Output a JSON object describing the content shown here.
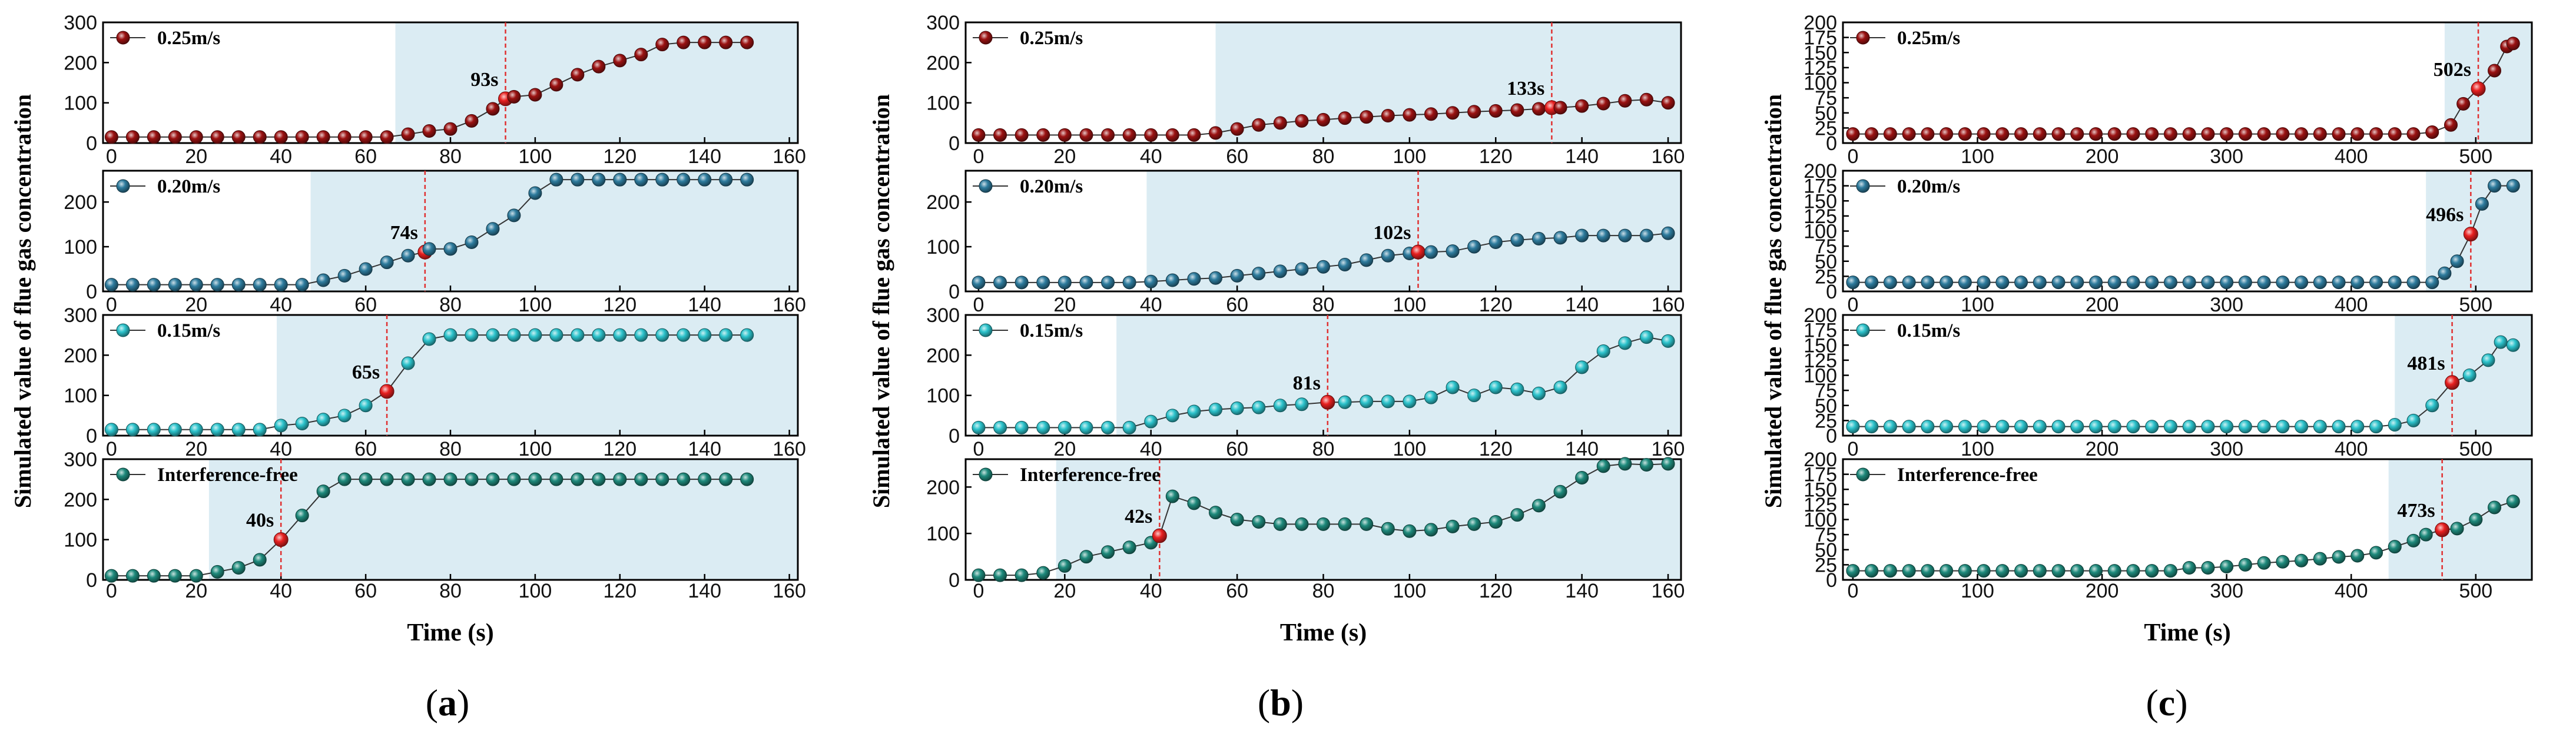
{
  "chart_data": [
    {
      "type": "line",
      "panel_label": "a",
      "ylabel": "Simulated value of flue gas concentration",
      "xlabel": "Time (s)",
      "x_ticks": [
        0,
        20,
        40,
        60,
        80,
        100,
        120,
        140,
        160
      ],
      "xlim": [
        -2,
        162
      ],
      "subplots": [
        {
          "series_name": "0.25m/s",
          "color": "#9b1212",
          "y_ticks": [
            0,
            100,
            200,
            300
          ],
          "ylim": [
            0,
            300
          ],
          "shade_start": 67,
          "event_time": 93,
          "event_label": "93s",
          "x": [
            0,
            5,
            10,
            15,
            20,
            25,
            30,
            35,
            40,
            45,
            50,
            55,
            60,
            65,
            70,
            75,
            80,
            85,
            90,
            93,
            95,
            100,
            105,
            110,
            115,
            120,
            125,
            130,
            135,
            140,
            145,
            150
          ],
          "y": [
            15,
            15,
            15,
            15,
            15,
            15,
            15,
            15,
            15,
            15,
            15,
            15,
            15,
            15,
            22,
            30,
            35,
            55,
            85,
            110,
            115,
            120,
            145,
            170,
            190,
            205,
            220,
            245,
            250,
            250,
            250,
            250
          ]
        },
        {
          "series_name": "0.20m/s",
          "color": "#2e7c9e",
          "y_ticks": [
            0,
            100,
            200
          ],
          "ylim": [
            0,
            270
          ],
          "shade_start": 47,
          "event_time": 74,
          "event_label": "74s",
          "x": [
            0,
            5,
            10,
            15,
            20,
            25,
            30,
            35,
            40,
            45,
            50,
            55,
            60,
            65,
            70,
            74,
            75,
            80,
            85,
            90,
            95,
            100,
            105,
            110,
            115,
            120,
            125,
            130,
            135,
            140,
            145,
            150
          ],
          "y": [
            15,
            15,
            15,
            15,
            15,
            15,
            15,
            15,
            15,
            15,
            25,
            35,
            50,
            65,
            80,
            88,
            95,
            95,
            110,
            140,
            170,
            220,
            250,
            250,
            250,
            250,
            250,
            250,
            250,
            250,
            250,
            250
          ]
        },
        {
          "series_name": "0.15m/s",
          "color": "#2cc3cc",
          "y_ticks": [
            0,
            100,
            200,
            300
          ],
          "ylim": [
            0,
            300
          ],
          "shade_start": 39,
          "event_time": 65,
          "event_label": "65s",
          "x": [
            0,
            5,
            10,
            15,
            20,
            25,
            30,
            35,
            40,
            45,
            50,
            55,
            60,
            65,
            70,
            75,
            80,
            85,
            90,
            95,
            100,
            105,
            110,
            115,
            120,
            125,
            130,
            135,
            140,
            145,
            150
          ],
          "y": [
            15,
            15,
            15,
            15,
            15,
            15,
            15,
            15,
            25,
            30,
            40,
            50,
            75,
            110,
            180,
            240,
            250,
            250,
            250,
            250,
            250,
            250,
            250,
            250,
            250,
            250,
            250,
            250,
            250,
            250,
            250
          ]
        },
        {
          "series_name": "Interference-free",
          "color": "#1e8a7c",
          "y_ticks": [
            0,
            100,
            200,
            300
          ],
          "ylim": [
            0,
            300
          ],
          "shade_start": 23,
          "event_time": 40,
          "event_label": "40s",
          "x": [
            0,
            5,
            10,
            15,
            20,
            25,
            30,
            35,
            40,
            45,
            50,
            55,
            60,
            65,
            70,
            75,
            80,
            85,
            90,
            95,
            100,
            105,
            110,
            115,
            120,
            125,
            130,
            135,
            140,
            145,
            150
          ],
          "y": [
            10,
            10,
            10,
            10,
            10,
            20,
            30,
            50,
            100,
            160,
            220,
            250,
            250,
            250,
            250,
            250,
            250,
            250,
            250,
            250,
            250,
            250,
            250,
            250,
            250,
            250,
            250,
            250,
            250,
            250,
            250
          ]
        }
      ]
    },
    {
      "type": "line",
      "panel_label": "b",
      "ylabel": "Simulated value of flue gas concentration",
      "xlabel": "Time (s)",
      "x_ticks": [
        0,
        20,
        40,
        60,
        80,
        100,
        120,
        140,
        160
      ],
      "xlim": [
        -3,
        163
      ],
      "subplots": [
        {
          "series_name": "0.25m/s",
          "color": "#9b1212",
          "y_ticks": [
            0,
            100,
            200,
            300
          ],
          "ylim": [
            0,
            300
          ],
          "shade_start": 55,
          "event_time": 133,
          "event_label": "133s",
          "x": [
            0,
            5,
            10,
            15,
            20,
            25,
            30,
            35,
            40,
            45,
            50,
            55,
            60,
            65,
            70,
            75,
            80,
            85,
            90,
            95,
            100,
            105,
            110,
            115,
            120,
            125,
            130,
            133,
            135,
            140,
            145,
            150,
            155,
            160
          ],
          "y": [
            20,
            20,
            20,
            20,
            20,
            20,
            20,
            20,
            20,
            20,
            20,
            25,
            35,
            45,
            50,
            55,
            58,
            62,
            65,
            68,
            70,
            72,
            75,
            78,
            80,
            82,
            85,
            88,
            88,
            92,
            98,
            105,
            108,
            100
          ]
        },
        {
          "series_name": "0.20m/s",
          "color": "#2e7c9e",
          "y_ticks": [
            0,
            100,
            200
          ],
          "ylim": [
            0,
            270
          ],
          "shade_start": 39,
          "event_time": 102,
          "event_label": "102s",
          "x": [
            0,
            5,
            10,
            15,
            20,
            25,
            30,
            35,
            40,
            45,
            50,
            55,
            60,
            65,
            70,
            75,
            80,
            85,
            90,
            95,
            100,
            102,
            105,
            110,
            115,
            120,
            125,
            130,
            135,
            140,
            145,
            150,
            155,
            160
          ],
          "y": [
            20,
            20,
            20,
            20,
            20,
            20,
            20,
            20,
            22,
            25,
            28,
            30,
            35,
            40,
            45,
            50,
            55,
            60,
            70,
            80,
            85,
            88,
            88,
            90,
            100,
            110,
            115,
            118,
            120,
            125,
            125,
            125,
            125,
            130
          ]
        },
        {
          "series_name": "0.15m/s",
          "color": "#2cc3cc",
          "y_ticks": [
            0,
            100,
            200,
            300
          ],
          "ylim": [
            0,
            300
          ],
          "shade_start": 32,
          "event_time": 81,
          "event_label": "81s",
          "x": [
            0,
            5,
            10,
            15,
            20,
            25,
            30,
            35,
            40,
            45,
            50,
            55,
            60,
            65,
            70,
            75,
            81,
            85,
            90,
            95,
            100,
            105,
            110,
            115,
            120,
            125,
            130,
            135,
            140,
            145,
            150,
            155,
            160
          ],
          "y": [
            20,
            20,
            20,
            20,
            20,
            20,
            20,
            20,
            35,
            50,
            60,
            65,
            68,
            70,
            75,
            78,
            83,
            83,
            85,
            85,
            85,
            95,
            120,
            100,
            120,
            115,
            105,
            120,
            170,
            210,
            230,
            245,
            235
          ]
        },
        {
          "series_name": "Interference-free",
          "color": "#1e8a7c",
          "y_ticks": [
            0,
            100,
            200
          ],
          "ylim": [
            0,
            260
          ],
          "shade_start": 18,
          "event_time": 42,
          "event_label": "42s",
          "x": [
            0,
            5,
            10,
            15,
            20,
            25,
            30,
            35,
            40,
            42,
            45,
            50,
            55,
            60,
            65,
            70,
            75,
            80,
            85,
            90,
            95,
            100,
            105,
            110,
            115,
            120,
            125,
            130,
            135,
            140,
            145,
            150,
            155,
            160
          ],
          "y": [
            10,
            10,
            10,
            15,
            30,
            50,
            60,
            70,
            80,
            95,
            180,
            165,
            145,
            130,
            125,
            120,
            120,
            120,
            120,
            120,
            110,
            105,
            108,
            115,
            120,
            125,
            140,
            160,
            190,
            220,
            245,
            250,
            248,
            250
          ]
        }
      ]
    },
    {
      "type": "line",
      "panel_label": "c",
      "ylabel": "Simulated value of flue gas concentration",
      "xlabel": "Time (s)",
      "x_ticks": [
        0,
        100,
        200,
        300,
        400,
        500
      ],
      "xlim": [
        -8,
        545
      ],
      "subplots": [
        {
          "series_name": "0.25m/s",
          "color": "#9b1212",
          "y_ticks": [
            0,
            25,
            50,
            75,
            100,
            125,
            150,
            175,
            200
          ],
          "ylim": [
            0,
            200
          ],
          "shade_start": 475,
          "event_time": 502,
          "event_label": "502s",
          "x": [
            0,
            15,
            30,
            45,
            60,
            75,
            90,
            105,
            120,
            135,
            150,
            165,
            180,
            195,
            210,
            225,
            240,
            255,
            270,
            285,
            300,
            315,
            330,
            345,
            360,
            375,
            390,
            405,
            420,
            435,
            450,
            465,
            480,
            490,
            502,
            515,
            525,
            530
          ],
          "y": [
            15,
            15,
            15,
            15,
            15,
            15,
            15,
            15,
            15,
            15,
            15,
            15,
            15,
            15,
            15,
            15,
            15,
            15,
            15,
            15,
            15,
            15,
            15,
            15,
            15,
            15,
            15,
            15,
            15,
            15,
            15,
            18,
            30,
            65,
            90,
            120,
            160,
            165
          ]
        },
        {
          "series_name": "0.20m/s",
          "color": "#2e7c9e",
          "y_ticks": [
            0,
            25,
            50,
            75,
            100,
            125,
            150,
            175,
            200
          ],
          "ylim": [
            0,
            200
          ],
          "shade_start": 460,
          "event_time": 496,
          "event_label": "496s",
          "x": [
            0,
            15,
            30,
            45,
            60,
            75,
            90,
            105,
            120,
            135,
            150,
            165,
            180,
            195,
            210,
            225,
            240,
            255,
            270,
            285,
            300,
            315,
            330,
            345,
            360,
            375,
            390,
            405,
            420,
            435,
            450,
            465,
            475,
            485,
            496,
            505,
            515,
            530
          ],
          "y": [
            15,
            15,
            15,
            15,
            15,
            15,
            15,
            15,
            15,
            15,
            15,
            15,
            15,
            15,
            15,
            15,
            15,
            15,
            15,
            15,
            15,
            15,
            15,
            15,
            15,
            15,
            15,
            15,
            15,
            15,
            15,
            15,
            30,
            50,
            95,
            145,
            175,
            175
          ]
        },
        {
          "series_name": "0.15m/s",
          "color": "#2cc3cc",
          "y_ticks": [
            0,
            25,
            50,
            75,
            100,
            125,
            150,
            175,
            200
          ],
          "ylim": [
            0,
            200
          ],
          "shade_start": 435,
          "event_time": 481,
          "event_label": "481s",
          "x": [
            0,
            15,
            30,
            45,
            60,
            75,
            90,
            105,
            120,
            135,
            150,
            165,
            180,
            195,
            210,
            225,
            240,
            255,
            270,
            285,
            300,
            315,
            330,
            345,
            360,
            375,
            390,
            405,
            420,
            435,
            450,
            465,
            481,
            495,
            510,
            520,
            530
          ],
          "y": [
            15,
            15,
            15,
            15,
            15,
            15,
            15,
            15,
            15,
            15,
            15,
            15,
            15,
            15,
            15,
            15,
            15,
            15,
            15,
            15,
            15,
            15,
            15,
            15,
            15,
            15,
            15,
            15,
            15,
            18,
            25,
            50,
            88,
            100,
            125,
            155,
            150
          ]
        },
        {
          "series_name": "Interference-free",
          "color": "#1e8a7c",
          "y_ticks": [
            0,
            25,
            50,
            75,
            100,
            125,
            150,
            175,
            200
          ],
          "ylim": [
            0,
            200
          ],
          "shade_start": 430,
          "event_time": 473,
          "event_label": "473s",
          "x": [
            0,
            15,
            30,
            45,
            60,
            75,
            90,
            105,
            120,
            135,
            150,
            165,
            180,
            195,
            210,
            225,
            240,
            255,
            270,
            285,
            300,
            315,
            330,
            345,
            360,
            375,
            390,
            405,
            420,
            435,
            450,
            460,
            473,
            485,
            500,
            515,
            530
          ],
          "y": [
            15,
            15,
            15,
            15,
            15,
            15,
            15,
            15,
            15,
            15,
            15,
            15,
            15,
            15,
            15,
            15,
            15,
            15,
            20,
            20,
            22,
            25,
            28,
            30,
            32,
            35,
            38,
            40,
            45,
            55,
            65,
            75,
            83,
            85,
            100,
            120,
            130
          ]
        }
      ]
    }
  ],
  "captions": {
    "open": "(",
    "close": ")"
  }
}
